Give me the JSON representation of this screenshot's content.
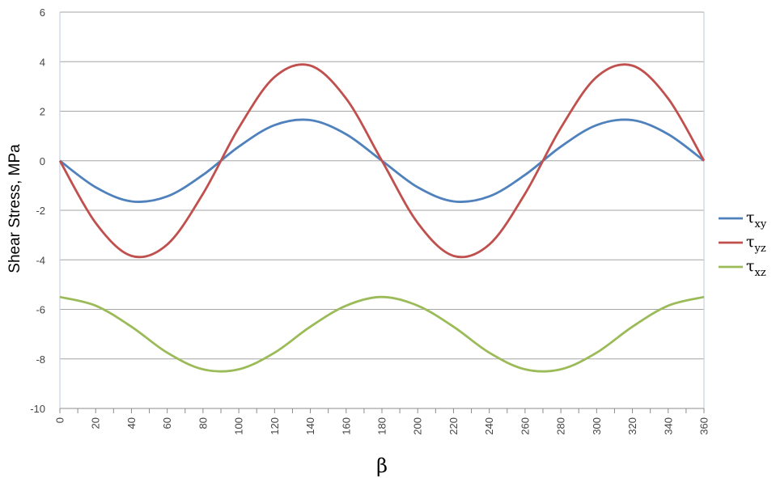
{
  "chart_data": {
    "type": "line",
    "title": "",
    "xlabel": "β",
    "ylabel": "Shear Stress, MPa",
    "xlim": [
      0,
      360
    ],
    "ylim": [
      -10,
      6
    ],
    "x_ticks": [
      "0",
      "20",
      "40",
      "60",
      "80",
      "100",
      "120",
      "140",
      "160",
      "180",
      "200",
      "220",
      "240",
      "260",
      "280",
      "300",
      "320",
      "340",
      "360"
    ],
    "y_ticks": [
      "6",
      "4",
      "2",
      "0",
      "-2",
      "-4",
      "-6",
      "-8",
      "-10"
    ],
    "grid": "horizontal",
    "legend_position": "right",
    "x": [
      0,
      20,
      40,
      60,
      80,
      100,
      120,
      140,
      160,
      180,
      200,
      220,
      240,
      260,
      280,
      300,
      320,
      340,
      360
    ],
    "series": [
      {
        "name": "τxy",
        "name_main": "τ",
        "name_sub": "xy",
        "color": "#4F81BD",
        "values": [
          0,
          -1.07,
          -1.64,
          -1.44,
          -0.57,
          0.57,
          1.44,
          1.64,
          1.07,
          0,
          -1.07,
          -1.64,
          -1.44,
          -0.57,
          0.57,
          1.44,
          1.64,
          1.07,
          0
        ]
      },
      {
        "name": "τyz",
        "name_main": "τ",
        "name_sub": "yz",
        "color": "#C0504D",
        "values": [
          0,
          -2.51,
          -3.84,
          -3.38,
          -1.33,
          1.33,
          3.38,
          3.84,
          2.51,
          0,
          -2.51,
          -3.84,
          -3.38,
          -1.33,
          1.33,
          3.38,
          3.84,
          2.51,
          0
        ]
      },
      {
        "name": "τxz",
        "name_main": "τ",
        "name_sub": "xz",
        "color": "#9BBB59",
        "values": [
          -5.5,
          -5.85,
          -6.7,
          -7.75,
          -8.42,
          -8.42,
          -7.75,
          -6.7,
          -5.85,
          -5.5,
          -5.85,
          -6.7,
          -7.75,
          -8.42,
          -8.42,
          -7.75,
          -6.7,
          -5.85,
          -5.5
        ]
      }
    ]
  }
}
